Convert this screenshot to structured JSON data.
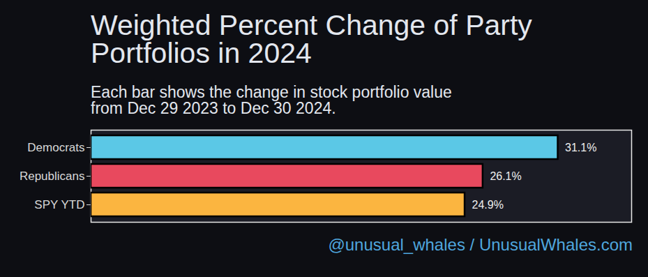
{
  "chart_data": {
    "type": "bar",
    "orientation": "horizontal",
    "title": "Weighted Percent Change of Party Portfolios in 2024",
    "subtitle": "Each bar shows the change in stock portfolio value from Dec 29 2023 to Dec 30 2024.",
    "caption": "@unusual_whales / UnusualWhales.com",
    "categories": [
      "Democrats",
      "Republicans",
      "SPY YTD"
    ],
    "values": [
      31.1,
      26.1,
      24.9
    ],
    "value_labels": [
      "31.1%",
      "26.1%",
      "24.9%"
    ],
    "colors": [
      "#5bc8e6",
      "#e8495e",
      "#fbb540"
    ],
    "xlim": [
      0,
      36
    ],
    "grid": false,
    "data_labels": true,
    "tick_labels": "y"
  }
}
